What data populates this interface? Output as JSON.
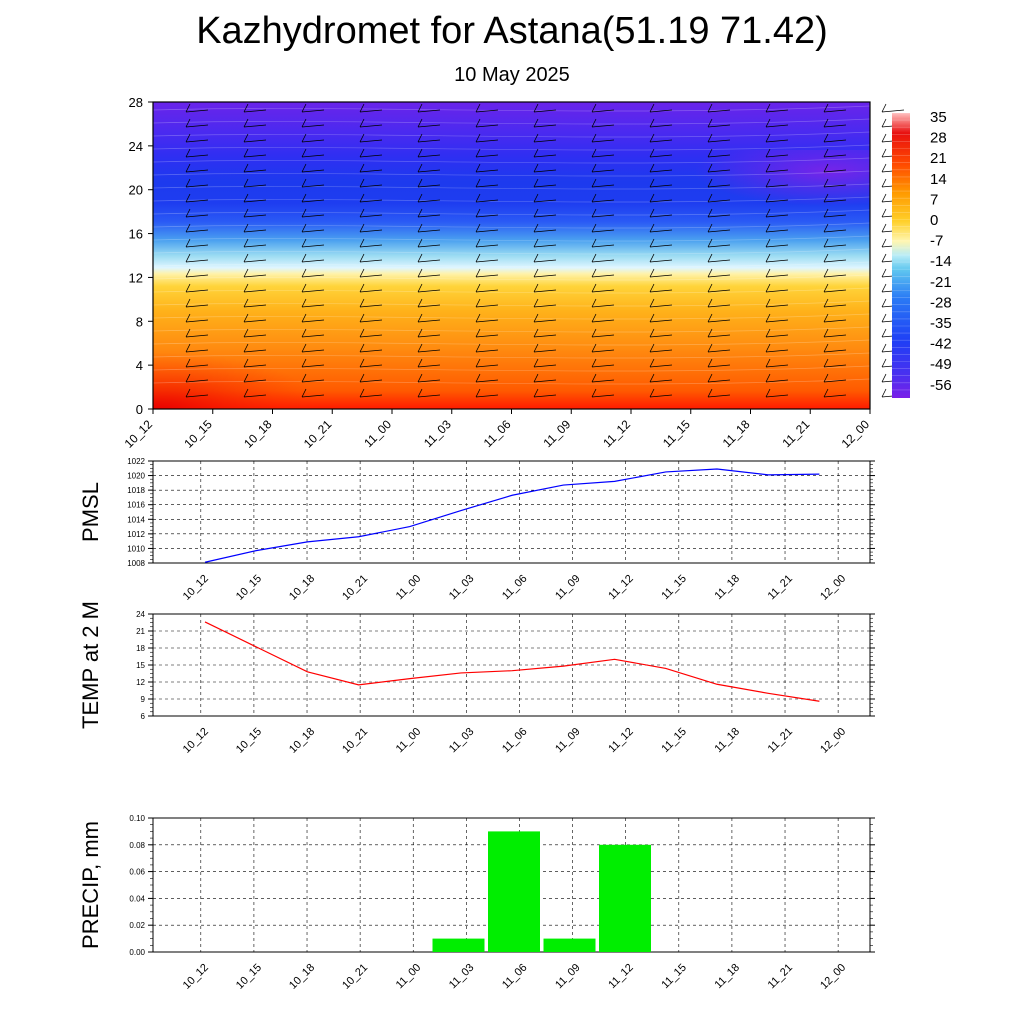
{
  "title": "Kazhydromet for Astana(51.19 71.42)",
  "subtitle": "10 May 2025",
  "chart_data": [
    {
      "type": "heatmap",
      "name": "cross-section",
      "x_labels": [
        "10_12",
        "10_15",
        "10_18",
        "10_21",
        "11_00",
        "11_03",
        "11_06",
        "11_09",
        "11_12",
        "11_15",
        "11_18",
        "11_21",
        "12_00"
      ],
      "y_ticks": [
        0,
        4,
        8,
        12,
        16,
        20,
        24,
        28
      ],
      "ylim": [
        0,
        28
      ],
      "colorbar_labels": [
        "35",
        "28",
        "21",
        "14",
        "7",
        "0",
        "-7",
        "-14",
        "-21",
        "-28",
        "-35",
        "-42",
        "-49",
        "-56"
      ],
      "colorbar_range": [
        -63,
        40
      ],
      "colors": [
        "#7a1fe8",
        "#3a3af5",
        "#1f5af5",
        "#4aa8f0",
        "#9fdff5",
        "#fff0a0",
        "#ffc21a",
        "#ff8a00",
        "#ff4a00",
        "#e81010",
        "#ffb0b0"
      ],
      "wind_barbs": true
    },
    {
      "type": "line",
      "name": "pmsl",
      "ylabel": "PMSL",
      "categories": [
        "10_12",
        "10_15",
        "10_18",
        "10_21",
        "11_00",
        "11_03",
        "11_06",
        "11_09",
        "11_12",
        "11_15",
        "11_18",
        "11_21",
        "12_00"
      ],
      "series": [
        {
          "values": [
            1008.1,
            1009.7,
            1010.9,
            1011.6,
            1013.0,
            1015.2,
            1017.3,
            1018.7,
            1019.2,
            1020.5,
            1020.9,
            1020.1,
            1020.2
          ]
        }
      ],
      "y_ticks": [
        1008,
        1010,
        1012,
        1014,
        1016,
        1018,
        1020,
        1022
      ],
      "ylim": [
        1008,
        1022
      ],
      "grid": true,
      "color": "#0000ff"
    },
    {
      "type": "line",
      "name": "temp",
      "ylabel": "TEMP at 2 M",
      "categories": [
        "10_12",
        "10_15",
        "10_18",
        "10_21",
        "11_00",
        "11_03",
        "11_06",
        "11_09",
        "11_12",
        "11_15",
        "11_18",
        "11_21",
        "12_00"
      ],
      "series": [
        {
          "values": [
            22.6,
            18.2,
            13.8,
            11.5,
            12.6,
            13.6,
            14.0,
            14.8,
            16.0,
            14.4,
            11.6,
            10.0,
            8.6
          ]
        }
      ],
      "y_ticks": [
        6,
        9,
        12,
        15,
        18,
        21,
        24
      ],
      "ylim": [
        6,
        24
      ],
      "grid": true,
      "color": "#ff0000"
    },
    {
      "type": "bar",
      "name": "precip",
      "ylabel": "PRECIP, mm",
      "categories": [
        "10_12",
        "10_15",
        "10_18",
        "10_21",
        "11_00",
        "11_03",
        "11_06",
        "11_09",
        "11_12",
        "11_15",
        "11_18",
        "11_21",
        "12_00"
      ],
      "values": [
        0,
        0,
        0,
        0,
        0,
        0.01,
        0.09,
        0.01,
        0.08,
        0,
        0,
        0,
        0
      ],
      "y_ticks": [
        "0.00",
        "0.02",
        "0.04",
        "0.06",
        "0.08",
        "0.10"
      ],
      "ylim": [
        0,
        0.1
      ],
      "grid": true,
      "color": "#00ee00"
    }
  ]
}
